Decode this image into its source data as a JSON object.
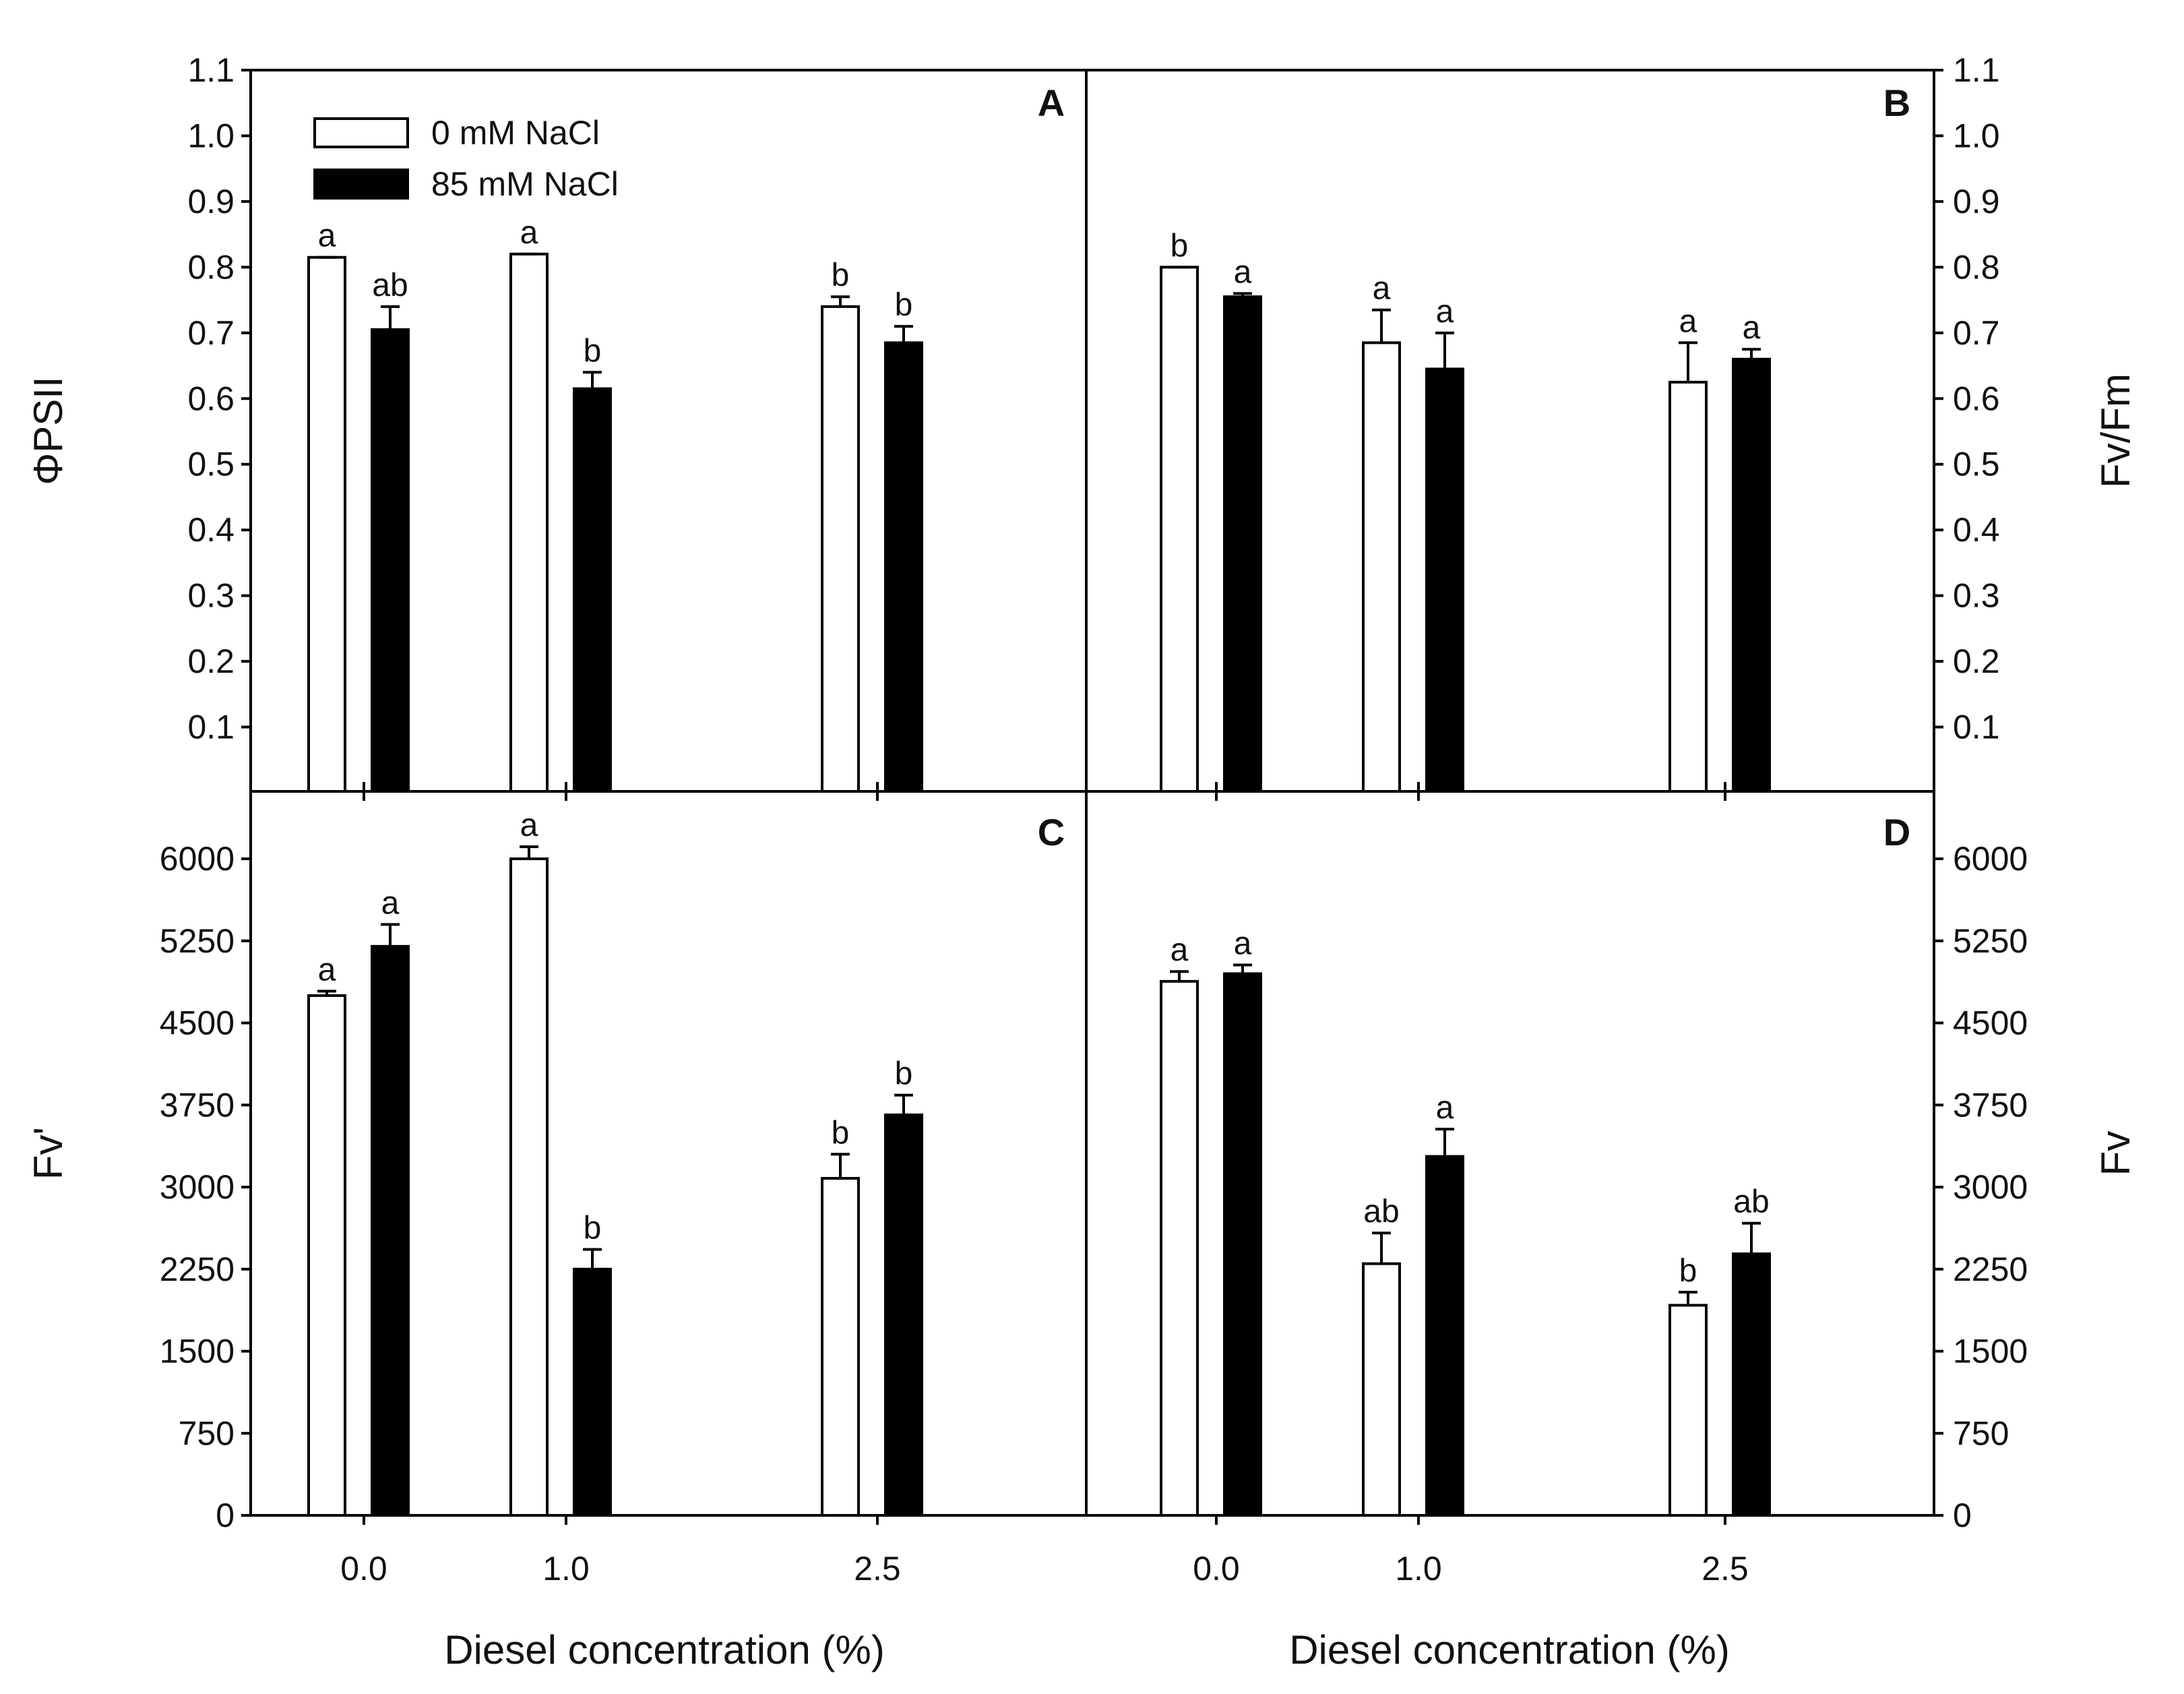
{
  "legend": [
    {
      "name": "0 mM NaCl",
      "fill": "#ffffff"
    },
    {
      "name": "85 mM NaCl",
      "fill": "#000000"
    }
  ],
  "xlabel": "Diesel concentration (%)",
  "chart_data": [
    {
      "type": "bar",
      "panel": "A",
      "ylabel": "ΦPSII",
      "ylim": [
        0,
        1.1
      ],
      "yticks": [
        "0.1",
        "0.2",
        "0.3",
        "0.4",
        "0.5",
        "0.6",
        "0.7",
        "0.8",
        "0.9",
        "1.0",
        "1.1"
      ],
      "categories": [
        "0.0",
        "1.0",
        "2.5"
      ],
      "series": [
        {
          "name": "0 mM NaCl",
          "values": [
            0.815,
            0.82,
            0.74
          ],
          "errors": [
            0.0,
            0.0,
            0.015
          ],
          "labels": [
            "a",
            "a",
            "b"
          ]
        },
        {
          "name": "85 mM NaCl",
          "values": [
            0.705,
            0.615,
            0.685
          ],
          "errors": [
            0.035,
            0.025,
            0.025
          ],
          "labels": [
            "ab",
            "b",
            "b"
          ]
        }
      ]
    },
    {
      "type": "bar",
      "panel": "B",
      "ylabel": "Fv/Fm",
      "ylim": [
        0,
        1.1
      ],
      "yticks": [
        "0.1",
        "0.2",
        "0.3",
        "0.4",
        "0.5",
        "0.6",
        "0.7",
        "0.8",
        "0.9",
        "1.0",
        "1.1"
      ],
      "categories": [
        "0.0",
        "1.0",
        "2.5"
      ],
      "series": [
        {
          "name": "0 mM NaCl",
          "values": [
            0.8,
            0.685,
            0.625
          ],
          "errors": [
            0.0,
            0.05,
            0.06
          ],
          "labels": [
            "b",
            "a",
            "a"
          ]
        },
        {
          "name": "85 mM NaCl",
          "values": [
            0.755,
            0.645,
            0.66
          ],
          "errors": [
            0.005,
            0.055,
            0.015
          ],
          "labels": [
            "a",
            "a",
            "a"
          ]
        }
      ]
    },
    {
      "type": "bar",
      "panel": "C",
      "ylabel": "Fv'",
      "ylim": [
        0,
        6500
      ],
      "yticks": [
        "0",
        "750",
        "1500",
        "2250",
        "3000",
        "3750",
        "4500",
        "5250",
        "6000"
      ],
      "categories": [
        "0.0",
        "1.0",
        "2.5"
      ],
      "series": [
        {
          "name": "0 mM NaCl",
          "values": [
            4750,
            6000,
            3080
          ],
          "errors": [
            40,
            110,
            220
          ],
          "labels": [
            "a",
            "a",
            "b"
          ]
        },
        {
          "name": "85 mM NaCl",
          "values": [
            5200,
            2250,
            3660
          ],
          "errors": [
            200,
            180,
            180
          ],
          "labels": [
            "a",
            "b",
            "b"
          ]
        }
      ]
    },
    {
      "type": "bar",
      "panel": "D",
      "ylabel": "Fv",
      "ylim": [
        0,
        6500
      ],
      "yticks": [
        "0",
        "750",
        "1500",
        "2250",
        "3000",
        "3750",
        "4500",
        "5250",
        "6000"
      ],
      "categories": [
        "0.0",
        "1.0",
        "2.5"
      ],
      "series": [
        {
          "name": "0 mM NaCl",
          "values": [
            4880,
            2300,
            1920
          ],
          "errors": [
            90,
            280,
            120
          ],
          "labels": [
            "a",
            "ab",
            "b"
          ]
        },
        {
          "name": "85 mM NaCl",
          "values": [
            4950,
            3280,
            2390
          ],
          "errors": [
            80,
            250,
            280
          ],
          "labels": [
            "a",
            "a",
            "ab"
          ]
        }
      ]
    }
  ]
}
